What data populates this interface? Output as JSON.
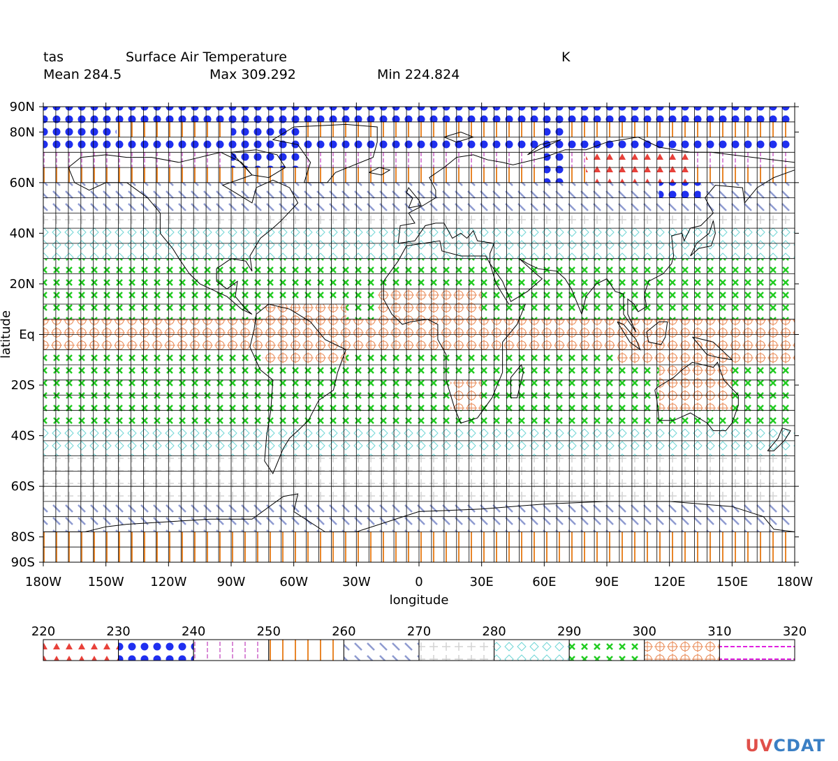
{
  "header": {
    "variable": "tas",
    "long_name": "Surface Air Temperature",
    "units": "K",
    "mean": "Mean 284.5",
    "max": "Max 309.292",
    "min": "Min 224.824"
  },
  "logo": {
    "part1": "UV",
    "part2": "CDAT"
  },
  "chart_data": {
    "type": "heatmap",
    "title": "Surface Air Temperature",
    "variable": "tas",
    "units": "K",
    "xlabel": "longitude",
    "ylabel": "latitude",
    "xlim": [
      -180,
      180
    ],
    "ylim": [
      -90,
      90
    ],
    "x_ticks": [
      "180W",
      "150W",
      "120W",
      "90W",
      "60W",
      "30W",
      "0",
      "30E",
      "60E",
      "90E",
      "120E",
      "150E",
      "180W"
    ],
    "y_ticks": [
      "90N",
      "80N",
      "60N",
      "40N",
      "20N",
      "Eq",
      "20S",
      "40S",
      "60S",
      "80S",
      "90S"
    ],
    "colorbar": {
      "levels": [
        220,
        230,
        240,
        250,
        260,
        270,
        280,
        290,
        300,
        310,
        320
      ],
      "patterns": [
        "triangles",
        "dots",
        "dashed-vertical",
        "vertical-lines",
        "diagonal-dashes",
        "plus",
        "diamonds",
        "crosses",
        "circles",
        "horizontal-dashes"
      ],
      "colors": [
        "#e8413a",
        "#1f2ff0",
        "#d98ad6",
        "#e8862a",
        "#8e9bd0",
        "#d4d4d4",
        "#6fd6d6",
        "#22cc22",
        "#e8864f",
        "#e020e0"
      ]
    },
    "latitude_bands": [
      {
        "lat": [
          84,
          90
        ],
        "value": 235
      },
      {
        "lat": [
          78,
          84
        ],
        "value": 252
      },
      {
        "lat": [
          72,
          78
        ],
        "value": 238
      },
      {
        "lat": [
          66,
          72
        ],
        "value": 245
      },
      {
        "lat": [
          60,
          66
        ],
        "value": 258
      },
      {
        "lat": [
          54,
          60
        ],
        "value": 260
      },
      {
        "lat": [
          48,
          54
        ],
        "value": 268
      },
      {
        "lat": [
          42,
          48
        ],
        "value": 272
      },
      {
        "lat": [
          36,
          42
        ],
        "value": 283
      },
      {
        "lat": [
          30,
          36
        ],
        "value": 287
      },
      {
        "lat": [
          24,
          30
        ],
        "value": 294
      },
      {
        "lat": [
          18,
          24
        ],
        "value": 296
      },
      {
        "lat": [
          12,
          18
        ],
        "value": 298
      },
      {
        "lat": [
          6,
          12
        ],
        "value": 299
      },
      {
        "lat": [
          0,
          6
        ],
        "value": 300
      },
      {
        "lat": [
          -6,
          0
        ],
        "value": 300
      },
      {
        "lat": [
          -12,
          -6
        ],
        "value": 299
      },
      {
        "lat": [
          -18,
          -12
        ],
        "value": 297
      },
      {
        "lat": [
          -24,
          -18
        ],
        "value": 295
      },
      {
        "lat": [
          -30,
          -24
        ],
        "value": 293
      },
      {
        "lat": [
          -36,
          -30
        ],
        "value": 290
      },
      {
        "lat": [
          -42,
          -36
        ],
        "value": 285
      },
      {
        "lat": [
          -48,
          -42
        ],
        "value": 281
      },
      {
        "lat": [
          -54,
          -48
        ],
        "value": 276
      },
      {
        "lat": [
          -60,
          -54
        ],
        "value": 273
      },
      {
        "lat": [
          -66,
          -60
        ],
        "value": 271
      },
      {
        "lat": [
          -72,
          -66
        ],
        "value": 265
      },
      {
        "lat": [
          -78,
          -72
        ],
        "value": 262
      },
      {
        "lat": [
          -84,
          -78
        ],
        "value": 255
      },
      {
        "lat": [
          -90,
          -84
        ],
        "value": 252
      }
    ],
    "regional_values": [
      {
        "lon": [
          -180,
          -145
        ],
        "lat": [
          72,
          90
        ],
        "value": 235
      },
      {
        "lon": [
          -90,
          -55
        ],
        "lat": [
          66,
          90
        ],
        "value": 236
      },
      {
        "lon": [
          -15,
          10
        ],
        "lat": [
          84,
          90
        ],
        "value": 236
      },
      {
        "lon": [
          60,
          70
        ],
        "lat": [
          60,
          90
        ],
        "value": 234
      },
      {
        "lon": [
          80,
          130
        ],
        "lat": [
          60,
          72
        ],
        "value": 226
      },
      {
        "lon": [
          115,
          135
        ],
        "lat": [
          54,
          60
        ],
        "value": 238
      },
      {
        "lon": [
          -20,
          30
        ],
        "lat": [
          6,
          18
        ],
        "value": 301
      },
      {
        "lon": [
          15,
          30
        ],
        "lat": [
          -30,
          -18
        ],
        "value": 300
      },
      {
        "lon": [
          115,
          150
        ],
        "lat": [
          -30,
          -12
        ],
        "value": 301
      },
      {
        "lon": [
          95,
          180
        ],
        "lat": [
          -12,
          0
        ],
        "value": 301
      },
      {
        "lon": [
          -75,
          -35
        ],
        "lat": [
          -12,
          12
        ],
        "value": 300
      }
    ]
  }
}
